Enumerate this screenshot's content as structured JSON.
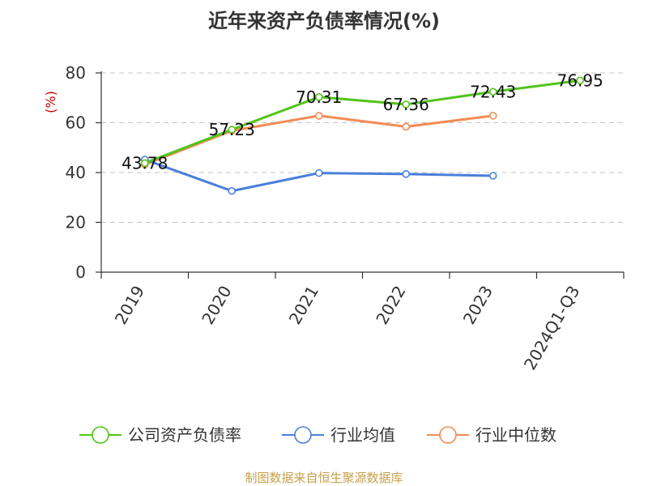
{
  "chart_data": {
    "type": "line",
    "title": "近年来资产负债率情况(%)",
    "ylabel": "(%)",
    "xlabel": "",
    "categories": [
      "2019",
      "2020",
      "2021",
      "2022",
      "2023",
      "2024Q1-Q3"
    ],
    "ylim": [
      0,
      80
    ],
    "yticks": [
      0,
      20,
      40,
      60,
      80
    ],
    "grid": true,
    "legend_position": "bottom",
    "series": [
      {
        "name": "公司资产负债率",
        "color": "#52c41a",
        "values": [
          43.78,
          57.23,
          70.31,
          67.36,
          72.43,
          76.95
        ],
        "labels": [
          "43.78",
          "57.23",
          "70.31",
          "67.36",
          "72.43",
          "76.95"
        ]
      },
      {
        "name": "行业均值",
        "color": "#4a7fdb",
        "values": [
          45.2,
          32.6,
          39.8,
          39.4,
          38.7,
          null
        ]
      },
      {
        "name": "行业中位数",
        "color": "#f28c55",
        "values": [
          43.2,
          56.8,
          62.8,
          58.4,
          62.8,
          null
        ]
      }
    ]
  },
  "source": "制图数据来自恒生聚源数据库"
}
